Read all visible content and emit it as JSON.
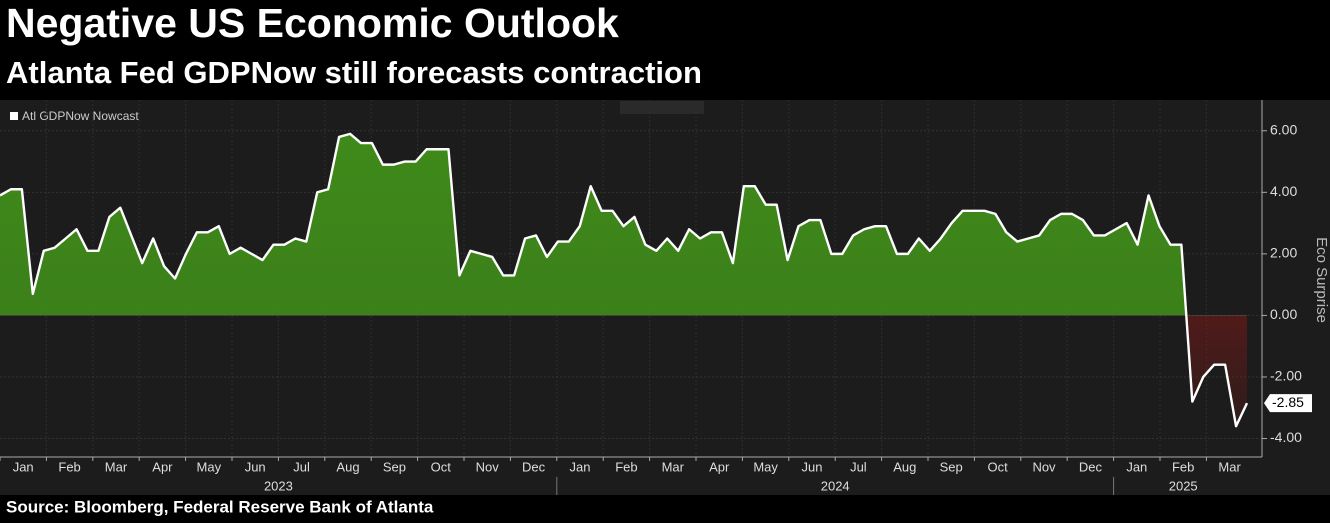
{
  "chart_data": {
    "type": "area",
    "title": "Negative US Economic Outlook",
    "subtitle": "Atlanta Fed GDPNow still forecasts contraction",
    "source": "Source: Bloomberg, Federal Reserve Bank of Atlanta",
    "y_axis_label": "Eco Surprise",
    "months": [
      "Jan",
      "Feb",
      "Mar",
      "Apr",
      "May",
      "Jun",
      "Jul",
      "Aug",
      "Sep",
      "Oct",
      "Nov",
      "Dec",
      "Jan",
      "Feb",
      "Mar",
      "Apr",
      "May",
      "Jun",
      "Jul",
      "Aug",
      "Sep",
      "Oct",
      "Nov",
      "Dec",
      "Jan",
      "Feb",
      "Mar"
    ],
    "years": [
      "2023",
      "2024",
      "2025"
    ],
    "ylim": [
      -4.6,
      7.0
    ],
    "yticks": [
      {
        "value": 6,
        "label": "6.00"
      },
      {
        "value": 4,
        "label": "4.00"
      },
      {
        "value": 2,
        "label": "2.00"
      },
      {
        "value": 0,
        "label": "0.00"
      },
      {
        "value": -2,
        "label": "-2.00"
      },
      {
        "value": -4,
        "label": "-4.00"
      }
    ],
    "grid": true,
    "positive_color": "#3f8a1a",
    "negative_color": "#8a1a16",
    "series": [
      {
        "name": "Atl GDPNow Nowcast",
        "color": "#ffffff",
        "values": [
          3.9,
          4.1,
          4.1,
          0.7,
          2.1,
          2.2,
          2.5,
          2.8,
          2.1,
          2.1,
          3.2,
          3.5,
          2.6,
          1.7,
          2.5,
          1.6,
          1.2,
          2.0,
          2.7,
          2.7,
          2.9,
          2.0,
          2.2,
          2.0,
          1.8,
          2.3,
          2.3,
          2.5,
          2.4,
          4.0,
          4.1,
          5.8,
          5.9,
          5.6,
          5.6,
          4.9,
          4.9,
          5.0,
          5.0,
          5.4,
          5.4,
          5.4,
          1.3,
          2.1,
          2.0,
          1.9,
          1.3,
          1.3,
          2.5,
          2.6,
          1.9,
          2.4,
          2.4,
          2.9,
          4.2,
          3.4,
          3.4,
          2.9,
          3.2,
          2.3,
          2.1,
          2.5,
          2.1,
          2.8,
          2.5,
          2.7,
          2.7,
          1.7,
          4.2,
          4.2,
          3.6,
          3.6,
          1.8,
          2.9,
          3.1,
          3.1,
          2.0,
          2.0,
          2.6,
          2.8,
          2.9,
          2.9,
          2.0,
          2.0,
          2.5,
          2.1,
          2.5,
          3.0,
          3.4,
          3.4,
          3.4,
          3.3,
          2.7,
          2.4,
          2.5,
          2.6,
          3.1,
          3.3,
          3.3,
          3.1,
          2.6,
          2.6,
          2.8,
          3.0,
          2.3,
          3.9,
          2.9,
          2.3,
          2.3,
          -2.8,
          -2.0,
          -1.6,
          -1.6,
          -3.6,
          -2.85
        ]
      }
    ]
  }
}
